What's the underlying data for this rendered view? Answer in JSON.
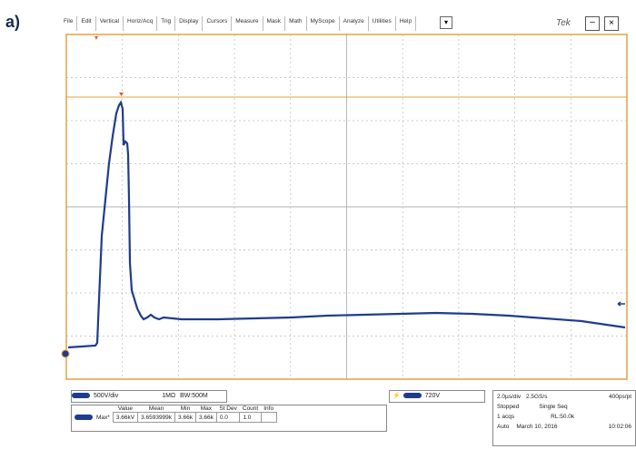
{
  "figure_label": "a)",
  "menu": [
    "File",
    "Edit",
    "Vertical",
    "Horiz/Acq",
    "Trig",
    "Display",
    "Cursors",
    "Measure",
    "Mask",
    "Math",
    "MyScope",
    "Analyze",
    "Utilities",
    "Help"
  ],
  "brand": "Tek",
  "channel": {
    "scale": "500V/div",
    "impedance": "1MΩ",
    "bandwidth": "BW:500M"
  },
  "trigger": {
    "level": "720V"
  },
  "measurements": {
    "headers": [
      "Value",
      "Mean",
      "Min",
      "Max",
      "St Dev",
      "Count",
      "Info"
    ],
    "rows": [
      {
        "label": "Max*",
        "cells": [
          "3.66kV",
          "3.6593999k",
          "3.66k",
          "3.66k",
          "0.0",
          "1.0"
        ]
      }
    ]
  },
  "acquisition": {
    "timebase": "2.0µs/div",
    "sample_rate": "2.5GS/s",
    "resolution": "400ps/pt",
    "state": "Stopped",
    "mode": "Single Seq",
    "count": "1 acqs",
    "record_length": "RL:50.0k",
    "trigger_mode": "Auto",
    "date": "March 10, 2016",
    "time": "10:02:06"
  }
}
